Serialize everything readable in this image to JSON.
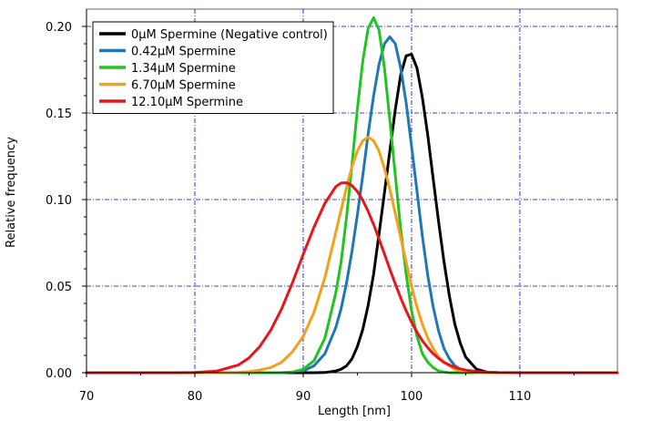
{
  "chart_data": {
    "type": "line",
    "title": "",
    "xlabel": "Length [nm]",
    "ylabel": "Relative frequency",
    "xlim": [
      70,
      119
    ],
    "ylim": [
      0,
      0.21
    ],
    "grid": true,
    "legend_position": "top-left",
    "x_ticks": [
      70,
      80,
      90,
      100,
      110
    ],
    "x_tick_labels": [
      "70",
      "80",
      "90",
      "100",
      "110"
    ],
    "y_ticks": [
      0.0,
      0.05,
      0.1,
      0.15,
      0.2
    ],
    "y_tick_labels": [
      "0.00",
      "0.05",
      "0.10",
      "0.15",
      "0.20"
    ],
    "x": [
      70,
      72,
      74,
      76,
      78,
      80,
      82,
      84,
      85,
      86,
      87,
      88,
      89,
      90,
      91,
      92,
      93,
      93.5,
      94,
      94.5,
      95,
      95.5,
      96,
      96.5,
      97,
      97.5,
      98,
      98.5,
      99,
      99.5,
      100,
      100.5,
      101,
      101.5,
      102,
      102.5,
      103,
      103.5,
      104,
      104.5,
      105,
      106,
      107,
      108,
      110,
      112,
      114,
      116,
      119
    ],
    "series": [
      {
        "name": "0μM Spermine (Negative control)",
        "color": "#000000",
        "values": [
          0,
          0,
          0,
          0,
          0,
          0,
          0,
          0,
          0,
          0,
          0,
          0,
          0,
          0,
          0,
          0.0001,
          0.001,
          0.002,
          0.004,
          0.008,
          0.015,
          0.025,
          0.039,
          0.057,
          0.08,
          0.104,
          0.128,
          0.152,
          0.172,
          0.183,
          0.184,
          0.176,
          0.159,
          0.137,
          0.112,
          0.087,
          0.064,
          0.044,
          0.028,
          0.017,
          0.009,
          0.002,
          0.0003,
          0,
          0,
          0,
          0,
          0,
          0
        ]
      },
      {
        "name": "0.42μM Spermine",
        "color": "#1f77b4",
        "values": [
          0,
          0,
          0,
          0,
          0,
          0,
          0,
          0,
          0,
          0,
          0,
          0,
          0.0003,
          0.001,
          0.004,
          0.011,
          0.026,
          0.037,
          0.052,
          0.07,
          0.091,
          0.114,
          0.138,
          0.16,
          0.178,
          0.19,
          0.194,
          0.19,
          0.176,
          0.156,
          0.131,
          0.105,
          0.079,
          0.056,
          0.038,
          0.024,
          0.014,
          0.008,
          0.004,
          0.002,
          0.001,
          0,
          0,
          0,
          0,
          0,
          0,
          0,
          0
        ]
      },
      {
        "name": "1.34μM Spermine",
        "color": "#22c322",
        "values": [
          0,
          0,
          0,
          0,
          0,
          0,
          0,
          0,
          0,
          0,
          0,
          0,
          0.0003,
          0.002,
          0.007,
          0.02,
          0.046,
          0.064,
          0.09,
          0.12,
          0.152,
          0.18,
          0.199,
          0.205,
          0.198,
          0.176,
          0.146,
          0.114,
          0.083,
          0.057,
          0.036,
          0.021,
          0.011,
          0.006,
          0.003,
          0.001,
          0.0004,
          0,
          0,
          0,
          0,
          0,
          0,
          0,
          0,
          0,
          0,
          0,
          0
        ]
      },
      {
        "name": "6.70μM Spermine",
        "color": "#f5a01a",
        "values": [
          0,
          0,
          0,
          0,
          0,
          0,
          0,
          0.0002,
          0.0006,
          0.0015,
          0.003,
          0.006,
          0.012,
          0.021,
          0.035,
          0.055,
          0.081,
          0.094,
          0.107,
          0.119,
          0.128,
          0.134,
          0.136,
          0.134,
          0.128,
          0.118,
          0.106,
          0.092,
          0.078,
          0.064,
          0.05,
          0.038,
          0.028,
          0.02,
          0.014,
          0.009,
          0.006,
          0.004,
          0.002,
          0.001,
          0.0006,
          0.0001,
          0,
          0,
          0,
          0,
          0,
          0,
          0
        ]
      },
      {
        "name": "12.10μM Spermine",
        "color": "#e8161b",
        "values": [
          0,
          0,
          0,
          0,
          0,
          0.0001,
          0.0009,
          0.0044,
          0.0086,
          0.0152,
          0.0245,
          0.0368,
          0.0519,
          0.0684,
          0.0842,
          0.0979,
          0.1074,
          0.1096,
          0.1097,
          0.1081,
          0.1047,
          0.0996,
          0.0932,
          0.0856,
          0.0773,
          0.0686,
          0.0598,
          0.0513,
          0.0432,
          0.0358,
          0.0292,
          0.0235,
          0.0185,
          0.0144,
          0.011,
          0.0082,
          0.006,
          0.0044,
          0.0031,
          0.0022,
          0.0015,
          0.0007,
          0.0003,
          0.0001,
          0,
          0,
          0,
          0,
          0
        ]
      }
    ]
  }
}
